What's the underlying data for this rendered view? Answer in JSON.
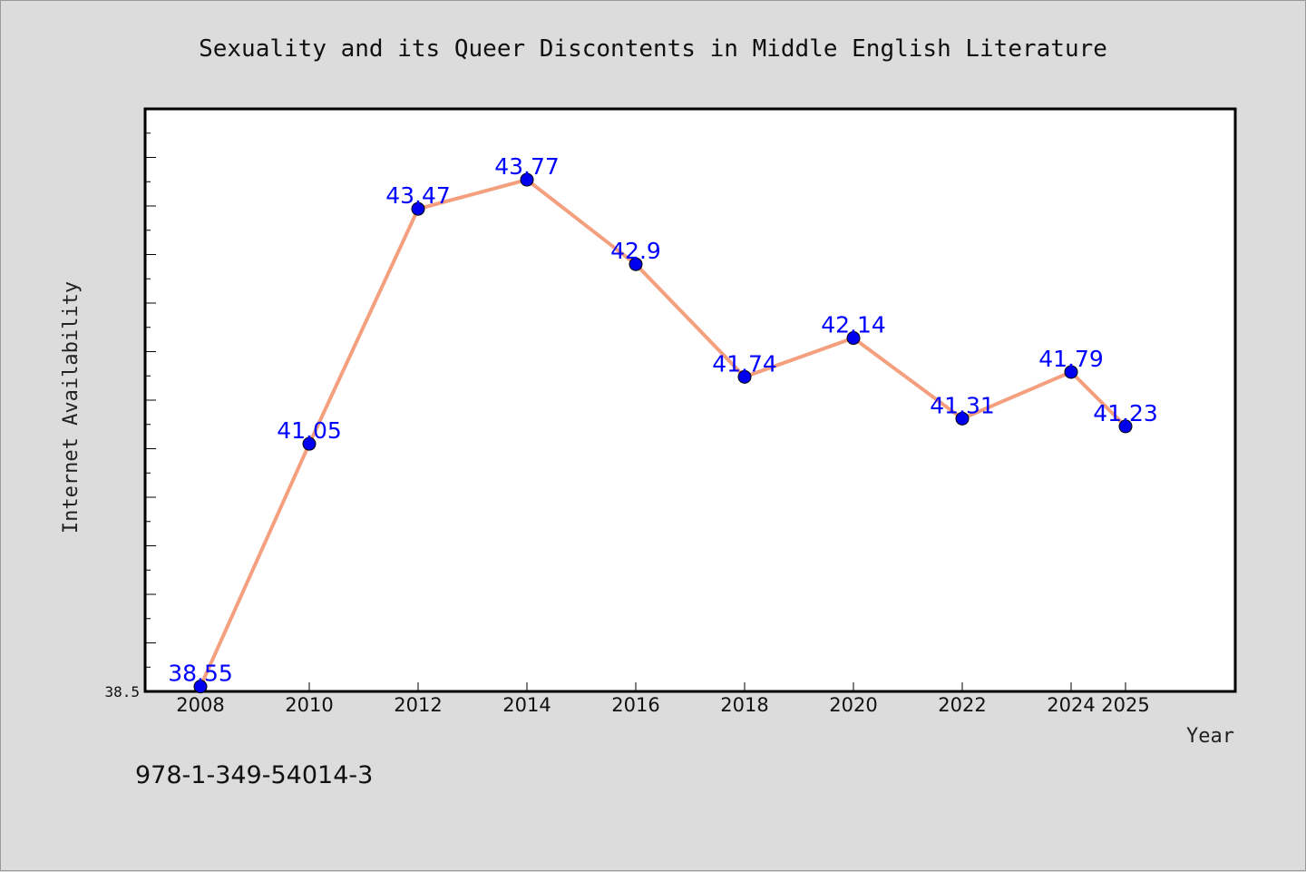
{
  "chart_data": {
    "type": "line",
    "title": "Sexuality and its Queer Discontents in Middle English Literature",
    "xlabel": "Year",
    "ylabel": "Internet Availability",
    "x": [
      "2008",
      "2010",
      "2012",
      "2014",
      "2016",
      "2018",
      "2020",
      "2022",
      "2024",
      "2025"
    ],
    "series": [
      {
        "values": [
          38.55,
          41.05,
          43.47,
          43.77,
          42.9,
          41.74,
          42.14,
          41.31,
          41.79,
          41.23
        ],
        "labels": [
          "38.55",
          "41.05",
          "43.47",
          "43.77",
          "42.9",
          "41.74",
          "42.14",
          "41.31",
          "41.79",
          "41.23"
        ],
        "line_color": "#f4a07f",
        "marker_color": "#0000ee"
      }
    ],
    "ylim": [
      38.5,
      44.5
    ],
    "ytick_labels": [
      "38.5"
    ],
    "grid": false,
    "legend": "none"
  },
  "footer": {
    "isbn": "978-1-349-54014-3"
  },
  "colors": {
    "background": "#dcdcdc",
    "plot_background": "#ffffff",
    "data_label": "#0000ff"
  }
}
